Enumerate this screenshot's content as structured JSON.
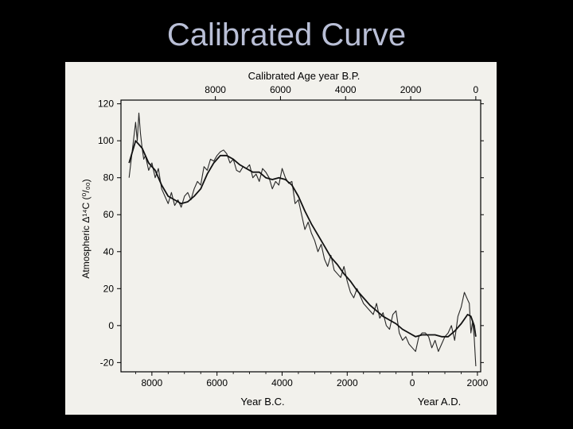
{
  "slide": {
    "title": "Calibrated Curve"
  },
  "chart_data": {
    "type": "line",
    "title": "Calibrated Age year B.P.",
    "xlabel_bottom_left": "Year B.C.",
    "xlabel_bottom_right": "Year A.D.",
    "ylabel": "Atmospheric Δ¹⁴C (⁰/₀₀)",
    "top_ticks": [
      "8000",
      "6000",
      "4000",
      "2000",
      "0"
    ],
    "bottom_ticks": [
      "8000",
      "6000",
      "4000",
      "2000",
      "0",
      "2000"
    ],
    "y_ticks": [
      "120",
      "100",
      "80",
      "60",
      "40",
      "20",
      "0",
      "-20"
    ],
    "ylim": [
      -25,
      122
    ],
    "xlim": [
      -8950,
      2100
    ],
    "grid": false,
    "series": [
      {
        "role": "raw-measurements",
        "x": [
          -8700,
          -8600,
          -8500,
          -8450,
          -8400,
          -8350,
          -8300,
          -8250,
          -8200,
          -8100,
          -8000,
          -7900,
          -7800,
          -7700,
          -7600,
          -7500,
          -7400,
          -7300,
          -7200,
          -7100,
          -7000,
          -6900,
          -6800,
          -6700,
          -6600,
          -6500,
          -6400,
          -6300,
          -6200,
          -6100,
          -6000,
          -5900,
          -5800,
          -5700,
          -5600,
          -5500,
          -5400,
          -5300,
          -5200,
          -5100,
          -5000,
          -4900,
          -4800,
          -4700,
          -4600,
          -4500,
          -4400,
          -4300,
          -4200,
          -4100,
          -4000,
          -3900,
          -3800,
          -3700,
          -3600,
          -3500,
          -3400,
          -3300,
          -3200,
          -3100,
          -3000,
          -2900,
          -2800,
          -2700,
          -2600,
          -2500,
          -2400,
          -2300,
          -2200,
          -2100,
          -2000,
          -1900,
          -1800,
          -1700,
          -1600,
          -1500,
          -1400,
          -1300,
          -1200,
          -1100,
          -1000,
          -900,
          -800,
          -700,
          -600,
          -500,
          -400,
          -300,
          -200,
          -100,
          0,
          100,
          200,
          300,
          400,
          500,
          600,
          700,
          800,
          900,
          1000,
          1100,
          1200,
          1300,
          1400,
          1500,
          1600,
          1700,
          1750,
          1800,
          1850,
          1900,
          1950
        ],
        "y": [
          80,
          95,
          110,
          100,
          115,
          104,
          96,
          90,
          92,
          84,
          88,
          80,
          85,
          74,
          70,
          66,
          72,
          65,
          68,
          64,
          70,
          72,
          68,
          74,
          78,
          76,
          86,
          84,
          90,
          89,
          92,
          94,
          95,
          93,
          88,
          90,
          84,
          83,
          86,
          85,
          87,
          80,
          82,
          78,
          85,
          83,
          80,
          74,
          78,
          76,
          85,
          80,
          77,
          78,
          66,
          68,
          60,
          52,
          56,
          50,
          46,
          40,
          44,
          36,
          32,
          38,
          30,
          28,
          26,
          32,
          24,
          18,
          15,
          20,
          16,
          12,
          10,
          8,
          6,
          12,
          4,
          7,
          0,
          -2,
          6,
          8,
          -4,
          -8,
          -6,
          -10,
          -12,
          -14,
          -6,
          -4,
          -4,
          -6,
          -12,
          -8,
          -14,
          -10,
          -6,
          -4,
          0,
          -8,
          5,
          10,
          18,
          14,
          12,
          -4,
          2,
          -6,
          -22
        ]
      },
      {
        "role": "smoothed-curve",
        "x": [
          -8700,
          -8500,
          -8300,
          -8100,
          -7900,
          -7700,
          -7500,
          -7300,
          -7100,
          -6900,
          -6700,
          -6500,
          -6300,
          -6100,
          -5900,
          -5700,
          -5500,
          -5300,
          -5100,
          -4900,
          -4700,
          -4500,
          -4300,
          -4100,
          -3900,
          -3700,
          -3500,
          -3300,
          -3100,
          -2900,
          -2700,
          -2500,
          -2300,
          -2100,
          -1900,
          -1700,
          -1500,
          -1300,
          -1100,
          -900,
          -700,
          -500,
          -300,
          -100,
          100,
          300,
          500,
          700,
          900,
          1100,
          1300,
          1500,
          1700,
          1800,
          1900,
          1950
        ],
        "y": [
          88,
          100,
          96,
          88,
          84,
          76,
          70,
          68,
          66,
          67,
          70,
          74,
          82,
          88,
          92,
          92,
          90,
          87,
          85,
          83,
          83,
          80,
          79,
          80,
          79,
          76,
          70,
          62,
          55,
          49,
          43,
          37,
          33,
          28,
          24,
          19,
          15,
          11,
          8,
          5,
          3,
          1,
          -2,
          -4,
          -6,
          -5,
          -5,
          -5,
          -6,
          -6,
          -3,
          1,
          6,
          5,
          0,
          -6
        ]
      }
    ]
  }
}
